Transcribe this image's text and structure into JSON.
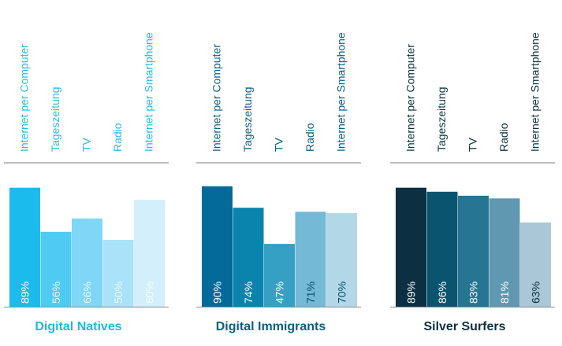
{
  "chart_data": {
    "type": "bar",
    "ylim": [
      0,
      100
    ],
    "categories": [
      "Internet per Computer",
      "Tageszeitung",
      "TV",
      "Radio",
      "Internet per Smartphone"
    ],
    "groups": [
      {
        "title": "Digital Natives",
        "title_color": "#22b6e4",
        "label_color": "#2ab9e6",
        "values": [
          89,
          56,
          66,
          50,
          80
        ],
        "value_labels": [
          "89%",
          "56%",
          "66%",
          "50%",
          "80%"
        ],
        "bar_colors": [
          "#1cbbee",
          "#4fcbf3",
          "#7fd6f6",
          "#a9e2f9",
          "#d3effc"
        ],
        "value_label_colors": [
          "#ffffff",
          "#e9f8fe",
          "#e9f8fe",
          "#eefafe",
          "#f5fcff"
        ]
      },
      {
        "title": "Digital Immigrants",
        "title_color": "#0a5f84",
        "label_color": "#0a5f84",
        "values": [
          90,
          74,
          47,
          71,
          70
        ],
        "value_labels": [
          "90%",
          "74%",
          "47%",
          "71%",
          "70%"
        ],
        "bar_colors": [
          "#036a99",
          "#0a83ad",
          "#35a0c4",
          "#74b9d5",
          "#b2d8e7"
        ],
        "value_label_colors": [
          "#ffffff",
          "#ffffff",
          "#ffffff",
          "#0b4f6d",
          "#0b4f6d"
        ]
      },
      {
        "title": "Silver Surfers",
        "title_color": "#0c3040",
        "label_color": "#0c3040",
        "values": [
          89,
          86,
          83,
          81,
          63
        ],
        "value_labels": [
          "89%",
          "86%",
          "83%",
          "81%",
          "63%"
        ],
        "bar_colors": [
          "#0c2f42",
          "#0b5470",
          "#257593",
          "#5f98b0",
          "#a9c7d7"
        ],
        "value_label_colors": [
          "#ffffff",
          "#ffffff",
          "#ffffff",
          "#ffffff",
          "#0c3040"
        ]
      }
    ]
  }
}
